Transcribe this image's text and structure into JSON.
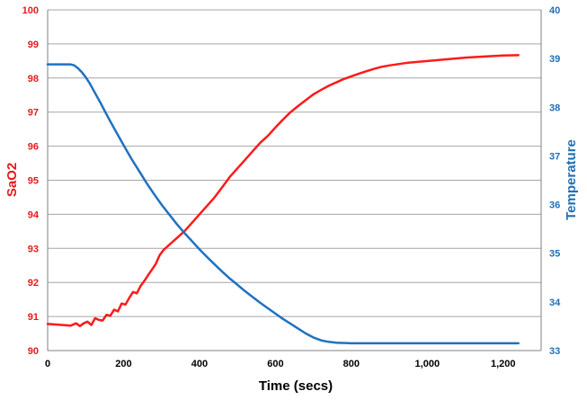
{
  "chart_data": {
    "type": "line",
    "title": "",
    "xlabel": "Time (secs)",
    "ylabel_left": "SaO2",
    "ylabel_right": "Temperature",
    "xlim": [
      0,
      1300
    ],
    "ylim_left": [
      90,
      100
    ],
    "ylim_right": [
      33,
      40
    ],
    "x_ticks": [
      0,
      200,
      400,
      600,
      800,
      1000,
      1200
    ],
    "x_tick_labels": [
      "0",
      "200",
      "400",
      "600",
      "800",
      "1,000",
      "1,200"
    ],
    "y_left_ticks": [
      90,
      91,
      92,
      93,
      94,
      95,
      96,
      97,
      98,
      99,
      100
    ],
    "y_left_tick_labels": [
      "90",
      "91",
      "92",
      "93",
      "94",
      "95",
      "96",
      "97",
      "98",
      "99",
      "100"
    ],
    "y_right_ticks": [
      33,
      34,
      35,
      36,
      37,
      38,
      39,
      40
    ],
    "y_right_tick_labels": [
      "33",
      "34",
      "35",
      "36",
      "37",
      "38",
      "39",
      "40"
    ],
    "grid": "horizontal",
    "legend": "none",
    "colors": {
      "left_axis": "#e31a1c",
      "right_axis": "#1f6fb5",
      "grid": "#a6a6a6",
      "axis": "#808080"
    },
    "series": [
      {
        "axis": "left",
        "color": "#ff1a1a",
        "x": [
          0,
          30,
          60,
          75,
          85,
          95,
          105,
          115,
          125,
          135,
          145,
          155,
          165,
          175,
          185,
          195,
          205,
          215,
          225,
          235,
          245,
          255,
          265,
          275,
          285,
          295,
          305,
          320,
          340,
          360,
          380,
          400,
          420,
          440,
          460,
          480,
          500,
          520,
          540,
          560,
          580,
          600,
          620,
          640,
          660,
          680,
          700,
          720,
          740,
          760,
          780,
          800,
          820,
          840,
          860,
          880,
          900,
          950,
          1000,
          1050,
          1100,
          1150,
          1200,
          1240
        ],
        "values": [
          90.78,
          90.76,
          90.73,
          90.8,
          90.72,
          90.8,
          90.85,
          90.75,
          90.95,
          90.9,
          90.88,
          91.05,
          91.02,
          91.2,
          91.15,
          91.38,
          91.35,
          91.55,
          91.72,
          91.68,
          91.9,
          92.05,
          92.22,
          92.38,
          92.55,
          92.8,
          92.95,
          93.1,
          93.3,
          93.5,
          93.75,
          94.0,
          94.25,
          94.5,
          94.8,
          95.1,
          95.35,
          95.6,
          95.85,
          96.1,
          96.3,
          96.55,
          96.78,
          97.0,
          97.18,
          97.35,
          97.52,
          97.65,
          97.77,
          97.87,
          97.97,
          98.05,
          98.13,
          98.2,
          98.27,
          98.33,
          98.37,
          98.45,
          98.5,
          98.55,
          98.6,
          98.63,
          98.66,
          98.67
        ]
      },
      {
        "axis": "right",
        "color": "#1f72c0",
        "x": [
          0,
          30,
          60,
          70,
          80,
          90,
          100,
          110,
          120,
          140,
          160,
          180,
          200,
          220,
          240,
          260,
          280,
          300,
          320,
          340,
          360,
          380,
          400,
          420,
          440,
          460,
          480,
          500,
          520,
          540,
          560,
          580,
          600,
          620,
          640,
          660,
          680,
          700,
          720,
          740,
          760,
          800,
          900,
          1000,
          1100,
          1240
        ],
        "values": [
          38.88,
          38.88,
          38.88,
          38.86,
          38.8,
          38.72,
          38.62,
          38.5,
          38.36,
          38.08,
          37.78,
          37.5,
          37.22,
          36.95,
          36.7,
          36.45,
          36.22,
          36.0,
          35.8,
          35.6,
          35.42,
          35.25,
          35.08,
          34.92,
          34.77,
          34.62,
          34.48,
          34.35,
          34.22,
          34.1,
          33.98,
          33.87,
          33.76,
          33.65,
          33.55,
          33.45,
          33.35,
          33.27,
          33.21,
          33.18,
          33.16,
          33.15,
          33.15,
          33.15,
          33.15,
          33.15
        ]
      }
    ]
  }
}
